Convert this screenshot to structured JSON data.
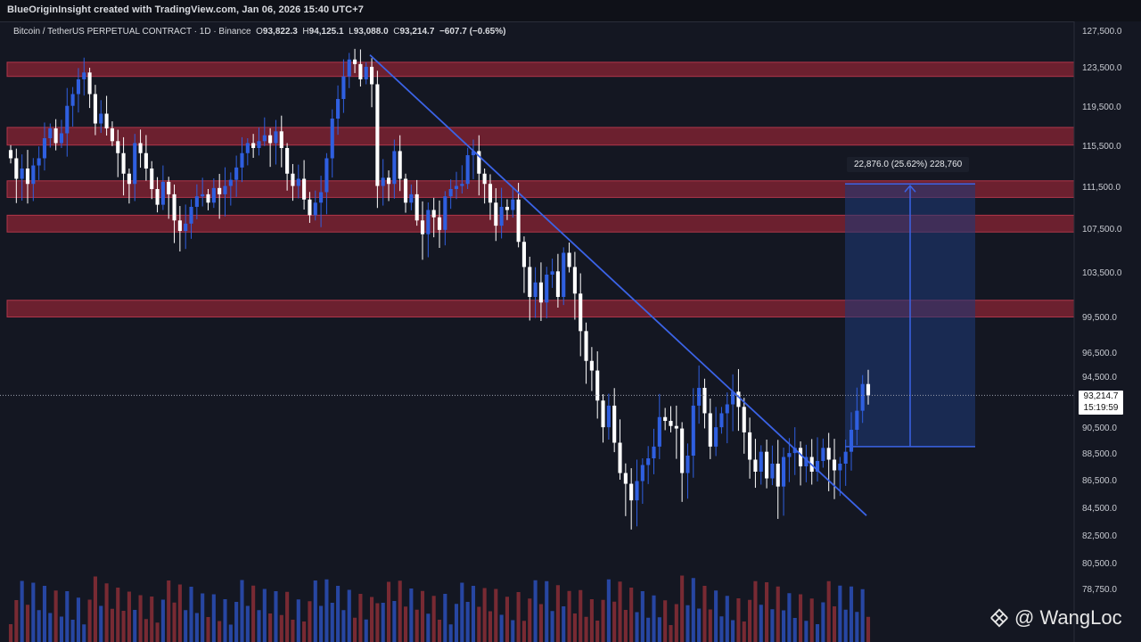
{
  "header": {
    "attribution": "BlueOriginInsight created with TradingView.com, Jan 06, 2026 15:40 UTC+7"
  },
  "legend": {
    "symbol": "Bitcoin / TetherUS PERPETUAL CONTRACT · 1D · Binance",
    "open_label": "O",
    "open": "93,822.3",
    "high_label": "H",
    "high": "94,125.1",
    "low_label": "L",
    "low": "93,088.0",
    "close_label": "C",
    "close": "93,214.7",
    "change": "−607.7 (−0.65%)"
  },
  "price_badge": {
    "price": "93,214.7",
    "countdown": "15:19:59"
  },
  "measure": {
    "label": "22,876.0 (25.62%) 228,760"
  },
  "watermark": {
    "text": "@ WangLoc"
  },
  "colors": {
    "background": "#141722",
    "bull": "#2f5fe0",
    "bear": "#ffffff",
    "zone": "#8a2434",
    "trendline": "#3b63e6",
    "projection": "#1d3a7a",
    "vol_bull": "#2a4fb8",
    "vol_bear": "#8a2e36"
  },
  "chart_data": {
    "type": "candlestick",
    "ylim": [
      77000,
      128000
    ],
    "price_axis": [
      "127,500.0",
      "123,500.0",
      "119,500.0",
      "115,500.0",
      "111,500.0",
      "107,500.0",
      "103,500.0",
      "99,500.0",
      "96,500.0",
      "94,500.0",
      "90,500.0",
      "88,500.0",
      "86,500.0",
      "84,500.0",
      "82,500.0",
      "80,500.0",
      "78,750.0"
    ],
    "resistance_zones": [
      [
        122800,
        124300
      ],
      [
        115800,
        117600
      ],
      [
        110700,
        112300
      ],
      [
        107400,
        109000
      ],
      [
        99700,
        101200
      ]
    ],
    "current_price": 93214.7,
    "projection": {
      "from": 89200,
      "to": 112000
    }
  }
}
